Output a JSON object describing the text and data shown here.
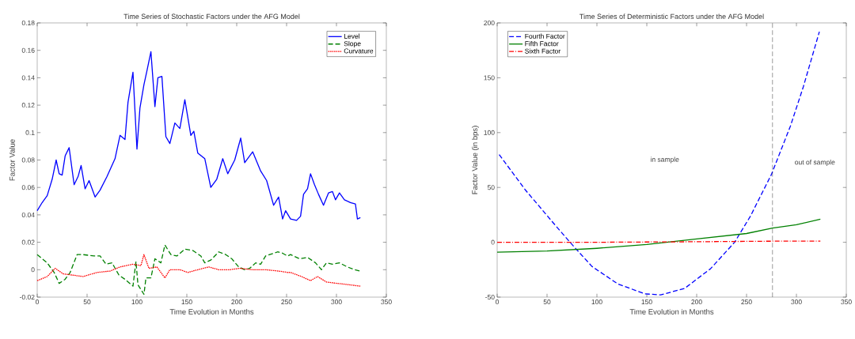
{
  "chart_data": [
    {
      "type": "line",
      "title": "Time Series of Stochastic Factors under the AFG Model",
      "xlabel": "Time Evolution in Months",
      "ylabel": "Factor Value",
      "xlim": [
        0,
        350
      ],
      "xticks": [
        0,
        50,
        100,
        150,
        200,
        250,
        300,
        350
      ],
      "ylim": [
        -0.02,
        0.18
      ],
      "yticks": [
        -0.02,
        0,
        0.02,
        0.04,
        0.06,
        0.08,
        0.1,
        0.12,
        0.14,
        0.16,
        0.18
      ],
      "legend": "top right",
      "grid": false,
      "series": [
        {
          "name": "Level",
          "color": "#0000ff",
          "line_style": "solid",
          "x": [
            0,
            5,
            10,
            15,
            19,
            22,
            25,
            28,
            32,
            37,
            41,
            44,
            48,
            52,
            58,
            63,
            70,
            78,
            83,
            88,
            91,
            96,
            100,
            103,
            107,
            110,
            114,
            118,
            121,
            125,
            129,
            133,
            138,
            143,
            148,
            154,
            157,
            161,
            168,
            174,
            180,
            186,
            191,
            198,
            204,
            208,
            216,
            224,
            230,
            237,
            242,
            246,
            249,
            254,
            260,
            264,
            267,
            271,
            274,
            278,
            282,
            287,
            292,
            296,
            299,
            303,
            308,
            314,
            319,
            321,
            324
          ],
          "values": [
            0.043,
            0.049,
            0.054,
            0.066,
            0.08,
            0.07,
            0.069,
            0.083,
            0.089,
            0.062,
            0.068,
            0.076,
            0.059,
            0.065,
            0.053,
            0.058,
            0.068,
            0.081,
            0.098,
            0.095,
            0.122,
            0.144,
            0.088,
            0.118,
            0.135,
            0.145,
            0.159,
            0.119,
            0.14,
            0.141,
            0.097,
            0.092,
            0.107,
            0.103,
            0.124,
            0.098,
            0.101,
            0.085,
            0.081,
            0.06,
            0.066,
            0.081,
            0.07,
            0.08,
            0.096,
            0.078,
            0.086,
            0.072,
            0.065,
            0.047,
            0.053,
            0.037,
            0.043,
            0.037,
            0.036,
            0.039,
            0.055,
            0.059,
            0.07,
            0.062,
            0.055,
            0.047,
            0.056,
            0.057,
            0.051,
            0.056,
            0.051,
            0.049,
            0.048,
            0.037,
            0.038
          ]
        },
        {
          "name": "Slope",
          "color": "#008000",
          "line_style": "dashed",
          "x": [
            0,
            10,
            17,
            22,
            28,
            33,
            40,
            46,
            57,
            63,
            69,
            75,
            82,
            88,
            96,
            99,
            101,
            107,
            109,
            114,
            118,
            124,
            128,
            134,
            140,
            148,
            156,
            164,
            168,
            174,
            182,
            189,
            195,
            202,
            208,
            213,
            219,
            224,
            229,
            237,
            241,
            246,
            251,
            254,
            263,
            271,
            279,
            285,
            290,
            296,
            303,
            311,
            318,
            324
          ],
          "values": [
            0.011,
            0.005,
            -0.002,
            -0.01,
            -0.007,
            -0.002,
            0.011,
            0.011,
            0.01,
            0.01,
            0.004,
            0.005,
            -0.004,
            -0.007,
            -0.012,
            0.006,
            -0.011,
            -0.018,
            -0.006,
            -0.006,
            0.008,
            0.005,
            0.018,
            0.011,
            0.01,
            0.015,
            0.014,
            0.01,
            0.005,
            0.007,
            0.013,
            0.011,
            0.008,
            0.002,
            0.0,
            0.001,
            0.005,
            0.004,
            0.01,
            0.012,
            0.013,
            0.012,
            0.01,
            0.011,
            0.008,
            0.009,
            0.005,
            0.0,
            0.005,
            0.004,
            0.005,
            0.002,
            0.0,
            -0.001
          ]
        },
        {
          "name": "Curvature",
          "color": "#ff0000",
          "line_style": "dotted",
          "x": [
            0,
            10,
            18,
            26,
            36,
            46,
            60,
            73,
            83,
            96,
            104,
            107,
            112,
            120,
            128,
            133,
            143,
            151,
            161,
            172,
            182,
            193,
            203,
            216,
            229,
            242,
            251,
            254,
            265,
            274,
            281,
            290,
            301,
            313,
            324
          ],
          "values": [
            -0.008,
            -0.005,
            0.001,
            -0.003,
            -0.004,
            -0.005,
            -0.002,
            -0.001,
            0.002,
            0.004,
            0.003,
            0.011,
            0.001,
            0.002,
            -0.006,
            0.0,
            0.0,
            -0.002,
            0.0,
            0.002,
            0.0,
            0.0,
            0.001,
            0.0,
            0.0,
            -0.001,
            -0.002,
            -0.002,
            -0.005,
            -0.008,
            -0.005,
            -0.009,
            -0.01,
            -0.011,
            -0.012
          ]
        }
      ]
    },
    {
      "type": "line",
      "title": "Time Series of Deterministic Factors under the AFG Model",
      "xlabel": "Time Evolution in Months",
      "ylabel": "Factor Value (in bps)",
      "xlim": [
        0,
        350
      ],
      "xticks": [
        0,
        50,
        100,
        150,
        200,
        250,
        300,
        350
      ],
      "ylim": [
        -50,
        200
      ],
      "yticks": [
        -50,
        0,
        50,
        100,
        150,
        200
      ],
      "legend": "top left",
      "grid": false,
      "ref_lines": [
        {
          "axis": "x",
          "value": 276,
          "color": "#000000",
          "line_style": "dashed"
        }
      ],
      "annotations": [
        "in sample",
        "out of sample"
      ],
      "series": [
        {
          "name": "Fourth Factor",
          "color": "#0000ff",
          "line_style": "dashed",
          "x": [
            2,
            28,
            55,
            73,
            95,
            121,
            148,
            164,
            188,
            214,
            238,
            254,
            275,
            294,
            307,
            323
          ],
          "values": [
            80,
            48,
            19,
            0,
            -22,
            -38,
            -47,
            -48,
            -42,
            -24,
            0,
            24,
            62,
            106,
            142,
            192
          ]
        },
        {
          "name": "Fifth Factor",
          "color": "#008000",
          "line_style": "solid",
          "x": [
            0,
            50,
            100,
            150,
            200,
            250,
            276,
            300,
            324
          ],
          "values": [
            -9,
            -8,
            -5.5,
            -2,
            3,
            8,
            13,
            16,
            21
          ]
        },
        {
          "name": "Sixth Factor",
          "color": "#ff0000",
          "line_style": "dashdot",
          "x": [
            0,
            100,
            200,
            276,
            324
          ],
          "values": [
            0,
            0,
            0.5,
            1,
            1
          ]
        }
      ]
    }
  ]
}
